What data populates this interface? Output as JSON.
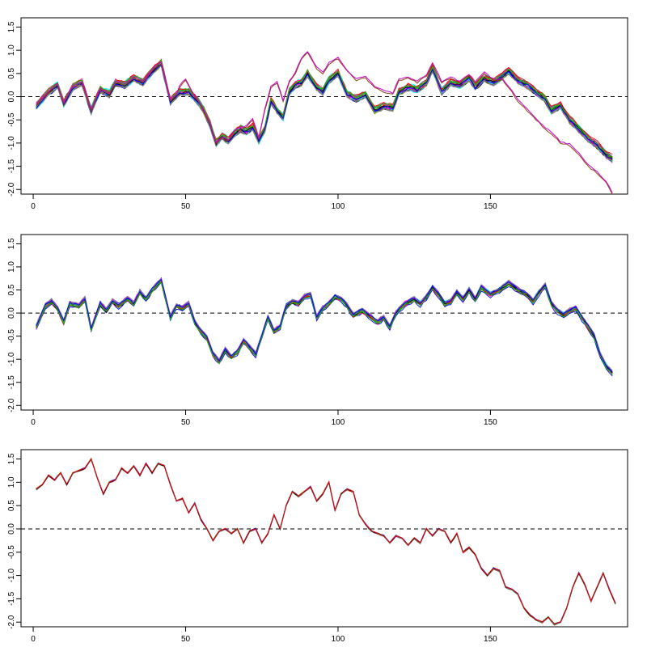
{
  "colors": {
    "frame": "#000000",
    "zero_line": "#000000",
    "palette": [
      "#000000",
      "#ff0000",
      "#00cd00",
      "#0000ff",
      "#00ffff",
      "#ff00ff",
      "#8b8b00",
      "#7f7f7f",
      "#ff1493",
      "#2e8b57"
    ]
  },
  "chart_data": [
    {
      "type": "line",
      "title": "",
      "xlabel": "",
      "ylabel": "",
      "xlim": [
        -4,
        195
      ],
      "ylim": [
        -2.1,
        1.7
      ],
      "x_ticks": [
        0,
        50,
        100,
        150
      ],
      "y_ticks": [
        -2.0,
        -1.5,
        -1.0,
        -0.5,
        0.0,
        0.5,
        1.0,
        1.5
      ],
      "x_tick_labels": [
        "0",
        "50",
        "100",
        "150"
      ],
      "y_tick_labels": [
        "-2.0",
        "-1.5",
        "-1.0",
        "-0.5",
        "0.0",
        "0.5",
        "1.0",
        "1.5"
      ],
      "reference_line": {
        "y": 0,
        "style": "dashed"
      },
      "grid": false,
      "legend": "none",
      "x_start": 1,
      "base": [
        [
          1,
          -0.2
        ],
        [
          5,
          0.1
        ],
        [
          8,
          0.25
        ],
        [
          10,
          -0.15
        ],
        [
          13,
          0.2
        ],
        [
          16,
          0.3
        ],
        [
          19,
          -0.3
        ],
        [
          22,
          0.15
        ],
        [
          25,
          0.05
        ],
        [
          27,
          0.3
        ],
        [
          30,
          0.25
        ],
        [
          33,
          0.4
        ],
        [
          36,
          0.3
        ],
        [
          39,
          0.55
        ],
        [
          42,
          0.72
        ],
        [
          45,
          -0.1
        ],
        [
          48,
          0.1
        ],
        [
          51,
          0.1
        ],
        [
          54,
          -0.1
        ],
        [
          56,
          -0.3
        ],
        [
          58,
          -0.6
        ],
        [
          60,
          -1.0
        ],
        [
          62,
          -0.85
        ],
        [
          64,
          -0.95
        ],
        [
          66,
          -0.8
        ],
        [
          68,
          -0.7
        ],
        [
          70,
          -0.75
        ],
        [
          72,
          -0.65
        ],
        [
          74,
          -0.95
        ],
        [
          76,
          -0.7
        ],
        [
          78,
          -0.1
        ],
        [
          80,
          -0.3
        ],
        [
          82,
          -0.45
        ],
        [
          84,
          0.1
        ],
        [
          86,
          0.25
        ],
        [
          88,
          0.3
        ],
        [
          90,
          0.5
        ],
        [
          93,
          0.2
        ],
        [
          95,
          0.1
        ],
        [
          97,
          0.35
        ],
        [
          100,
          0.5
        ],
        [
          103,
          0.05
        ],
        [
          106,
          -0.05
        ],
        [
          109,
          0.05
        ],
        [
          112,
          -0.3
        ],
        [
          115,
          -0.2
        ],
        [
          118,
          -0.25
        ],
        [
          120,
          0.1
        ],
        [
          123,
          0.2
        ],
        [
          126,
          0.15
        ],
        [
          129,
          0.3
        ],
        [
          131,
          0.6
        ],
        [
          134,
          0.1
        ],
        [
          137,
          0.3
        ],
        [
          140,
          0.25
        ],
        [
          143,
          0.4
        ],
        [
          145,
          0.2
        ],
        [
          148,
          0.4
        ],
        [
          151,
          0.3
        ],
        [
          154,
          0.45
        ],
        [
          156,
          0.55
        ],
        [
          159,
          0.35
        ],
        [
          162,
          0.25
        ],
        [
          165,
          0.1
        ],
        [
          168,
          -0.05
        ],
        [
          170,
          -0.3
        ],
        [
          173,
          -0.2
        ],
        [
          176,
          -0.5
        ],
        [
          179,
          -0.7
        ],
        [
          182,
          -0.9
        ],
        [
          185,
          -1.05
        ],
        [
          188,
          -1.25
        ],
        [
          190,
          -1.35
        ]
      ],
      "outliers": [
        {
          "from": 48,
          "points": [
            [
              48,
              0.2
            ],
            [
              50,
              0.35
            ],
            [
              52,
              0.1
            ],
            [
              55,
              -0.2
            ],
            [
              58,
              -0.6
            ],
            [
              60,
              -1.0
            ],
            [
              62,
              -0.9
            ],
            [
              64,
              -0.95
            ],
            [
              66,
              -0.75
            ],
            [
              68,
              -0.7
            ],
            [
              70,
              -0.65
            ],
            [
              72,
              -0.5
            ],
            [
              74,
              -0.9
            ],
            [
              76,
              -0.3
            ],
            [
              78,
              0.2
            ],
            [
              80,
              0.3
            ],
            [
              82,
              -0.1
            ],
            [
              84,
              0.3
            ],
            [
              86,
              0.5
            ],
            [
              88,
              0.8
            ],
            [
              90,
              0.95
            ],
            [
              93,
              0.6
            ],
            [
              95,
              0.5
            ],
            [
              97,
              0.7
            ],
            [
              100,
              0.82
            ],
            [
              103,
              0.55
            ],
            [
              106,
              0.35
            ],
            [
              109,
              0.4
            ],
            [
              112,
              0.2
            ],
            [
              115,
              0.1
            ],
            [
              118,
              0.05
            ],
            [
              120,
              0.35
            ],
            [
              123,
              0.4
            ],
            [
              126,
              0.3
            ],
            [
              129,
              0.45
            ],
            [
              131,
              0.7
            ],
            [
              134,
              0.3
            ],
            [
              137,
              0.4
            ],
            [
              140,
              0.3
            ],
            [
              143,
              0.45
            ],
            [
              145,
              0.3
            ],
            [
              148,
              0.5
            ],
            [
              151,
              0.35
            ],
            [
              154,
              0.35
            ],
            [
              156,
              0.2
            ],
            [
              159,
              -0.1
            ],
            [
              162,
              -0.3
            ],
            [
              165,
              -0.5
            ],
            [
              168,
              -0.7
            ],
            [
              170,
              -0.8
            ],
            [
              173,
              -1.0
            ],
            [
              176,
              -1.05
            ],
            [
              179,
              -1.25
            ],
            [
              182,
              -1.5
            ],
            [
              185,
              -1.65
            ],
            [
              188,
              -1.85
            ],
            [
              190,
              -2.1
            ]
          ]
        }
      ],
      "n_series": 24,
      "spread": 0.07
    },
    {
      "type": "line",
      "title": "",
      "xlabel": "",
      "ylabel": "",
      "xlim": [
        -4,
        195
      ],
      "ylim": [
        -2.1,
        1.7
      ],
      "x_ticks": [
        0,
        50,
        100,
        150
      ],
      "y_ticks": [
        -2.0,
        -1.5,
        -1.0,
        -0.5,
        0.0,
        0.5,
        1.0,
        1.5
      ],
      "x_tick_labels": [
        "0",
        "50",
        "100",
        "150"
      ],
      "y_tick_labels": [
        "-2.0",
        "-1.5",
        "-1.0",
        "-0.5",
        "0.0",
        "0.5",
        "1.0",
        "1.5"
      ],
      "reference_line": {
        "y": 0,
        "style": "dashed"
      },
      "grid": false,
      "legend": "none",
      "x_start": 1,
      "base": [
        [
          1,
          -0.3
        ],
        [
          4,
          0.15
        ],
        [
          6,
          0.25
        ],
        [
          8,
          0.1
        ],
        [
          10,
          -0.2
        ],
        [
          12,
          0.2
        ],
        [
          15,
          0.15
        ],
        [
          17,
          0.3
        ],
        [
          19,
          -0.35
        ],
        [
          22,
          0.2
        ],
        [
          24,
          0.05
        ],
        [
          26,
          0.25
        ],
        [
          28,
          0.15
        ],
        [
          31,
          0.3
        ],
        [
          33,
          0.2
        ],
        [
          35,
          0.45
        ],
        [
          37,
          0.3
        ],
        [
          39,
          0.5
        ],
        [
          42,
          0.7
        ],
        [
          45,
          -0.1
        ],
        [
          47,
          0.15
        ],
        [
          49,
          0.1
        ],
        [
          51,
          0.2
        ],
        [
          53,
          -0.2
        ],
        [
          55,
          -0.4
        ],
        [
          57,
          -0.55
        ],
        [
          59,
          -0.9
        ],
        [
          61,
          -1.05
        ],
        [
          63,
          -0.8
        ],
        [
          65,
          -0.95
        ],
        [
          67,
          -0.85
        ],
        [
          69,
          -0.6
        ],
        [
          71,
          -0.75
        ],
        [
          73,
          -0.9
        ],
        [
          75,
          -0.5
        ],
        [
          77,
          -0.1
        ],
        [
          79,
          -0.4
        ],
        [
          81,
          -0.3
        ],
        [
          83,
          0.15
        ],
        [
          85,
          0.25
        ],
        [
          87,
          0.2
        ],
        [
          89,
          0.35
        ],
        [
          91,
          0.4
        ],
        [
          93,
          -0.1
        ],
        [
          95,
          0.1
        ],
        [
          97,
          0.2
        ],
        [
          99,
          0.35
        ],
        [
          101,
          0.3
        ],
        [
          103,
          0.15
        ],
        [
          105,
          -0.05
        ],
        [
          108,
          0.05
        ],
        [
          111,
          -0.1
        ],
        [
          113,
          -0.2
        ],
        [
          115,
          -0.1
        ],
        [
          117,
          -0.3
        ],
        [
          119,
          0.0
        ],
        [
          122,
          0.2
        ],
        [
          125,
          0.3
        ],
        [
          127,
          0.2
        ],
        [
          129,
          0.35
        ],
        [
          131,
          0.55
        ],
        [
          133,
          0.4
        ],
        [
          135,
          0.2
        ],
        [
          137,
          0.25
        ],
        [
          139,
          0.45
        ],
        [
          141,
          0.3
        ],
        [
          143,
          0.5
        ],
        [
          145,
          0.3
        ],
        [
          147,
          0.55
        ],
        [
          150,
          0.4
        ],
        [
          153,
          0.5
        ],
        [
          156,
          0.65
        ],
        [
          159,
          0.5
        ],
        [
          162,
          0.4
        ],
        [
          164,
          0.25
        ],
        [
          166,
          0.45
        ],
        [
          168,
          0.6
        ],
        [
          170,
          0.2
        ],
        [
          172,
          0.05
        ],
        [
          174,
          -0.05
        ],
        [
          176,
          0.05
        ],
        [
          178,
          0.1
        ],
        [
          180,
          -0.1
        ],
        [
          182,
          -0.3
        ],
        [
          184,
          -0.5
        ],
        [
          186,
          -0.9
        ],
        [
          188,
          -1.15
        ],
        [
          190,
          -1.3
        ]
      ],
      "outliers": [],
      "n_series": 24,
      "spread": 0.05
    },
    {
      "type": "line",
      "title": "",
      "xlabel": "",
      "ylabel": "",
      "xlim": [
        -4,
        195
      ],
      "ylim": [
        -2.1,
        1.7
      ],
      "x_ticks": [
        0,
        50,
        100,
        150
      ],
      "y_ticks": [
        -2.0,
        -1.5,
        -1.0,
        -0.5,
        0.0,
        0.5,
        1.0,
        1.5
      ],
      "x_tick_labels": [
        "0",
        "50",
        "100",
        "150"
      ],
      "y_tick_labels": [
        "-2.0",
        "-1.5",
        "-1.0",
        "-0.5",
        "0.0",
        "0.5",
        "1.0",
        "1.5"
      ],
      "reference_line": {
        "y": 0,
        "style": "dashed"
      },
      "grid": false,
      "legend": "none",
      "x_start": 1,
      "base": [
        [
          1,
          0.85
        ],
        [
          3,
          0.95
        ],
        [
          5,
          1.15
        ],
        [
          7,
          1.05
        ],
        [
          9,
          1.2
        ],
        [
          11,
          0.95
        ],
        [
          13,
          1.2
        ],
        [
          15,
          1.25
        ],
        [
          17,
          1.3
        ],
        [
          19,
          1.5
        ],
        [
          21,
          1.1
        ],
        [
          23,
          0.75
        ],
        [
          25,
          1.0
        ],
        [
          27,
          1.05
        ],
        [
          29,
          1.3
        ],
        [
          31,
          1.2
        ],
        [
          33,
          1.35
        ],
        [
          35,
          1.15
        ],
        [
          37,
          1.4
        ],
        [
          39,
          1.2
        ],
        [
          41,
          1.4
        ],
        [
          43,
          1.35
        ],
        [
          45,
          0.95
        ],
        [
          47,
          0.6
        ],
        [
          49,
          0.65
        ],
        [
          51,
          0.35
        ],
        [
          53,
          0.55
        ],
        [
          55,
          0.2
        ],
        [
          57,
          0.0
        ],
        [
          59,
          -0.25
        ],
        [
          61,
          -0.05
        ],
        [
          63,
          0.0
        ],
        [
          65,
          -0.1
        ],
        [
          67,
          0.0
        ],
        [
          69,
          -0.3
        ],
        [
          71,
          -0.05
        ],
        [
          73,
          0.0
        ],
        [
          75,
          -0.3
        ],
        [
          77,
          -0.1
        ],
        [
          79,
          0.3
        ],
        [
          81,
          0.0
        ],
        [
          83,
          0.5
        ],
        [
          85,
          0.8
        ],
        [
          87,
          0.7
        ],
        [
          89,
          0.8
        ],
        [
          91,
          0.9
        ],
        [
          93,
          0.6
        ],
        [
          95,
          0.75
        ],
        [
          97,
          1.0
        ],
        [
          99,
          0.4
        ],
        [
          101,
          0.75
        ],
        [
          103,
          0.85
        ],
        [
          105,
          0.8
        ],
        [
          107,
          0.3
        ],
        [
          109,
          0.1
        ],
        [
          111,
          -0.05
        ],
        [
          113,
          -0.1
        ],
        [
          115,
          -0.15
        ],
        [
          117,
          -0.3
        ],
        [
          119,
          -0.15
        ],
        [
          121,
          -0.2
        ],
        [
          123,
          -0.35
        ],
        [
          125,
          -0.2
        ],
        [
          127,
          -0.3
        ],
        [
          129,
          0.0
        ],
        [
          131,
          -0.15
        ],
        [
          133,
          0.0
        ],
        [
          135,
          -0.05
        ],
        [
          137,
          -0.3
        ],
        [
          139,
          -0.1
        ],
        [
          141,
          -0.5
        ],
        [
          143,
          -0.4
        ],
        [
          145,
          -0.55
        ],
        [
          147,
          -0.85
        ],
        [
          149,
          -1.0
        ],
        [
          151,
          -0.85
        ],
        [
          153,
          -0.9
        ],
        [
          155,
          -1.25
        ],
        [
          157,
          -1.3
        ],
        [
          159,
          -1.4
        ],
        [
          161,
          -1.7
        ],
        [
          163,
          -1.85
        ],
        [
          165,
          -1.95
        ],
        [
          167,
          -2.0
        ],
        [
          169,
          -1.9
        ],
        [
          171,
          -2.05
        ],
        [
          173,
          -2.0
        ],
        [
          175,
          -1.7
        ],
        [
          177,
          -1.25
        ],
        [
          179,
          -0.95
        ],
        [
          181,
          -1.2
        ],
        [
          183,
          -1.55
        ],
        [
          185,
          -1.25
        ],
        [
          187,
          -0.95
        ],
        [
          189,
          -1.3
        ],
        [
          191,
          -1.6
        ]
      ],
      "outliers": [],
      "n_series": 12,
      "spread": 0.02
    }
  ]
}
